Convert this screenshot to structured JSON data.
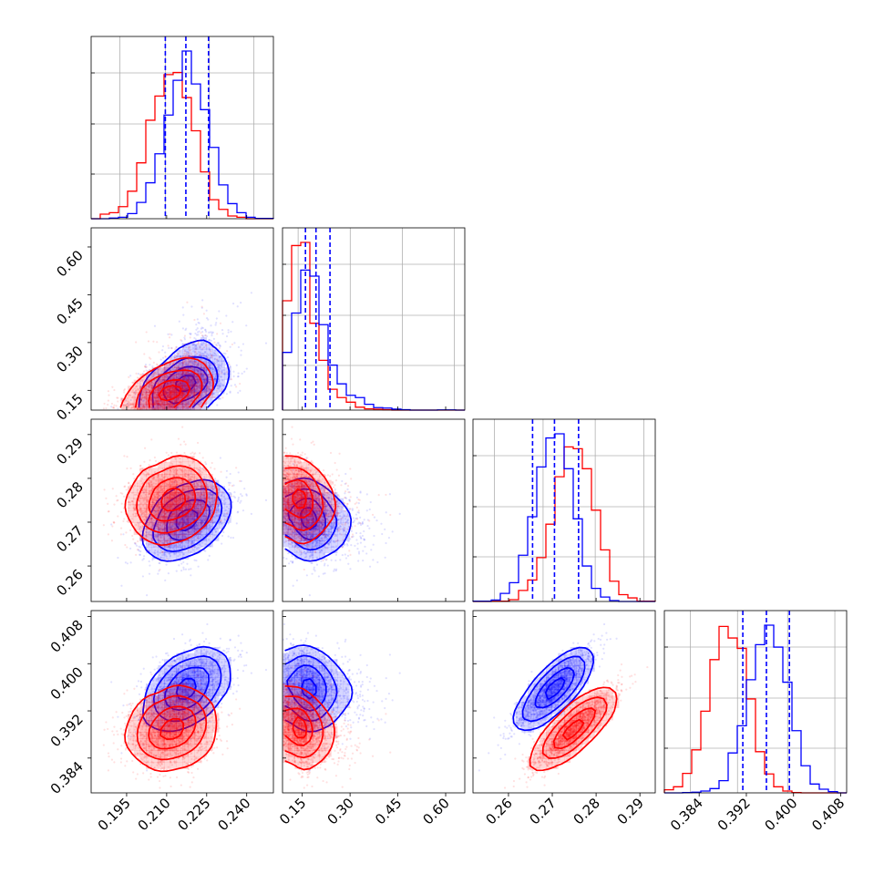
{
  "chart_data": {
    "type": "corner",
    "colors": {
      "A": "#0000ff",
      "B": "#ff0000"
    },
    "quantile_lines": {
      "color": "#0000ff",
      "style": "dashed"
    },
    "parameters": [
      {
        "range": [
          0.1817,
          0.25
        ],
        "ticks": [
          "0.195",
          "0.210",
          "0.225",
          "0.240"
        ],
        "tick_values": [
          0.195,
          0.21,
          0.225,
          0.24
        ],
        "hist_gridlines": [
          0.1925,
          0.2095,
          0.226,
          0.2427
        ],
        "quantiles": [
          0.2095,
          0.2172,
          0.2257
        ],
        "A": {
          "mean": 0.2175,
          "sd": 0.0078
        },
        "B": {
          "mean": 0.212,
          "sd": 0.0082
        }
      },
      {
        "range": [
          0.088,
          0.66
        ],
        "ticks": [
          "0.15",
          "0.30",
          "0.45",
          "0.60"
        ],
        "tick_values": [
          0.15,
          0.3,
          0.45,
          0.6
        ],
        "hist_gridlines": [
          0.137,
          0.3005,
          0.4644,
          0.627
        ],
        "quantiles": [
          0.16,
          0.193,
          0.237
        ],
        "A": {
          "mode": 0.175,
          "scale": 0.045,
          "tail": 0.055
        },
        "B": {
          "mode": 0.15,
          "scale": 0.035,
          "tail": 0.045
        }
      },
      {
        "range": [
          0.2519,
          0.2935
        ],
        "ticks": [
          "0.26",
          "0.27",
          "0.28",
          "0.29"
        ],
        "tick_values": [
          0.26,
          0.27,
          0.28,
          0.29
        ],
        "hist_gridlines": [
          0.2568,
          0.2679,
          0.2798,
          0.2909
        ],
        "quantiles": [
          0.2655,
          0.2705,
          0.276
        ],
        "A": {
          "mean": 0.2705,
          "sd": 0.0048
        },
        "B": {
          "mean": 0.275,
          "sd": 0.0048
        }
      },
      {
        "range": [
          0.3781,
          0.409
        ],
        "ticks": [
          "0.384",
          "0.392",
          "0.400",
          "0.408"
        ],
        "tick_values": [
          0.384,
          0.392,
          0.4,
          0.408
        ],
        "hist_gridlines": [
          0.3825,
          0.3905,
          0.399,
          0.407
        ],
        "quantiles": [
          0.3914,
          0.3954,
          0.3993
        ],
        "A": {
          "mean": 0.3958,
          "sd": 0.0034
        },
        "B": {
          "mean": 0.389,
          "sd": 0.0033
        }
      }
    ],
    "correlations": {
      "A": {
        "1-0": 0.45,
        "2-0": 0.55,
        "2-1": -0.45,
        "3-0": 0.7,
        "3-1": -0.35,
        "3-2": 0.85
      },
      "B": {
        "1-0": 0.45,
        "2-0": 0.3,
        "2-1": -0.3,
        "3-0": 0.3,
        "3-1": -0.4,
        "3-2": 0.88
      }
    }
  }
}
